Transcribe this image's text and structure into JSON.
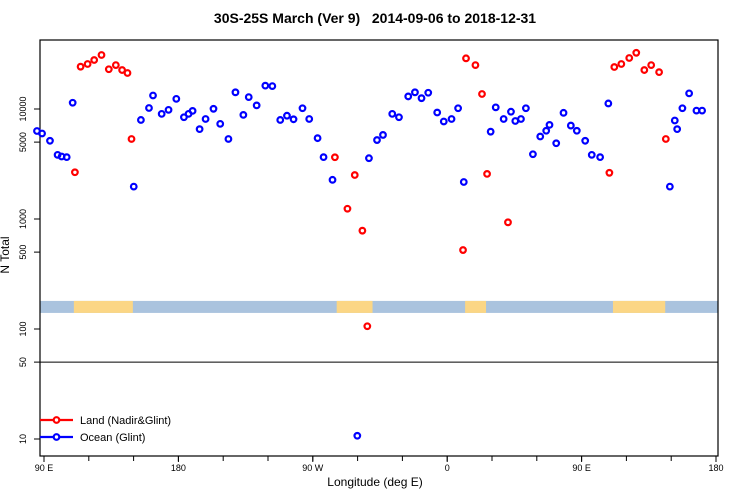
{
  "title": "30S-25S March (Ver 9)   2014-09-06 to 2018-12-31",
  "colors": {
    "land_series": "#ff0000",
    "ocean_series": "#0000ff",
    "strip_ocean": "#aac3de",
    "strip_land": "#fbd685",
    "axis": "#000000",
    "background": "#ffffff"
  },
  "chart_data": {
    "type": "scatter",
    "title": "30S-25S March (Ver 9)   2014-09-06 to 2018-12-31",
    "xlabel": "Longitude (deg E)",
    "ylabel": "N Total",
    "y_scale": "log10",
    "grid": false,
    "x_axis": {
      "ticks_major": [
        {
          "lon": 90,
          "label": "90 E"
        },
        {
          "lon": 180,
          "label": "180"
        },
        {
          "lon": 270,
          "label": "90 W"
        },
        {
          "lon": 360,
          "label": "0"
        },
        {
          "lon": 450,
          "label": "90 E"
        },
        {
          "lon": 540,
          "label": "180"
        }
      ],
      "minor_step_deg": 30,
      "range_deg": [
        90,
        540
      ]
    },
    "y_axis": {
      "ticks": [
        10,
        50,
        100,
        500,
        1000,
        5000,
        10000
      ],
      "labels": [
        "10",
        "50",
        "100",
        "500",
        "1000",
        "5000",
        "10000"
      ],
      "range": [
        8,
        45000
      ]
    },
    "reference_line_at_N": 50,
    "map_strip": {
      "description": "land/ocean strip along longitude",
      "N_range": [
        140,
        180
      ],
      "land_segments_deg": [
        [
          110,
          149.5
        ],
        [
          286,
          310
        ],
        [
          372,
          386
        ],
        [
          471,
          506
        ]
      ]
    },
    "legend": {
      "position": "bottom-left",
      "entries": [
        {
          "label": "Land (Nadir&Glint)",
          "color": "#ff0000"
        },
        {
          "label": "Ocean (Glint)",
          "color": "#0000ff"
        }
      ]
    },
    "series": [
      {
        "name": "Land (Nadir&Glint)",
        "color": "#ff0000",
        "points": [
          [
            114.5,
            24250
          ],
          [
            119.2,
            25650
          ],
          [
            123.6,
            27870
          ],
          [
            128.5,
            30970
          ],
          [
            133.4,
            22980
          ],
          [
            138.1,
            25070
          ],
          [
            142.3,
            22600
          ],
          [
            145.9,
            21250
          ],
          [
            148.6,
            5340
          ],
          [
            110.7,
            2660
          ],
          [
            284.8,
            3640
          ],
          [
            298.1,
            2510
          ],
          [
            293.2,
            1240
          ],
          [
            303.2,
            783
          ],
          [
            306.5,
            106
          ],
          [
            372.6,
            28880
          ],
          [
            378.9,
            25070
          ],
          [
            383.3,
            13690
          ],
          [
            386.7,
            2570
          ],
          [
            370.6,
            522
          ],
          [
            400.7,
            933
          ],
          [
            468.6,
            2630
          ],
          [
            471.9,
            24080
          ],
          [
            476.6,
            25650
          ],
          [
            481.9,
            29080
          ],
          [
            486.6,
            32420
          ],
          [
            492.0,
            22600
          ],
          [
            496.6,
            25070
          ],
          [
            501.9,
            21630
          ],
          [
            506.4,
            5340
          ]
        ]
      },
      {
        "name": "Ocean (Glint)",
        "color": "#0000ff",
        "points": [
          [
            85.3,
            6310
          ],
          [
            88.7,
            5990
          ],
          [
            94.0,
            5140
          ],
          [
            99.1,
            3830
          ],
          [
            101.8,
            3700
          ],
          [
            105.2,
            3650
          ],
          [
            109.2,
            11400
          ],
          [
            150.1,
            1970
          ],
          [
            154.9,
            7950
          ],
          [
            160.3,
            10210
          ],
          [
            163.0,
            13270
          ],
          [
            168.8,
            9030
          ],
          [
            173.4,
            9820
          ],
          [
            178.6,
            12360
          ],
          [
            183.7,
            8420
          ],
          [
            186.8,
            9030
          ],
          [
            189.5,
            9610
          ],
          [
            194.2,
            6560
          ],
          [
            198.2,
            8110
          ],
          [
            203.5,
            10040
          ],
          [
            208.0,
            7330
          ],
          [
            213.5,
            5340
          ],
          [
            218.2,
            14180
          ],
          [
            223.5,
            8840
          ],
          [
            227.1,
            12830
          ],
          [
            232.4,
            10780
          ],
          [
            238.2,
            16300
          ],
          [
            242.9,
            16150
          ],
          [
            248.2,
            7950
          ],
          [
            252.7,
            8690
          ],
          [
            257.1,
            8060
          ],
          [
            263.1,
            10160
          ],
          [
            267.6,
            8110
          ],
          [
            273.2,
            5430
          ],
          [
            277.2,
            3650
          ],
          [
            283.2,
            2270
          ],
          [
            307.6,
            3570
          ],
          [
            313.0,
            5220
          ],
          [
            317.0,
            5810
          ],
          [
            323.2,
            9030
          ],
          [
            327.7,
            8420
          ],
          [
            333.9,
            13010
          ],
          [
            338.4,
            14180
          ],
          [
            342.8,
            12540
          ],
          [
            347.3,
            14050
          ],
          [
            353.3,
            9290
          ],
          [
            357.7,
            7700
          ],
          [
            362.9,
            8110
          ],
          [
            367.3,
            10160
          ],
          [
            371.1,
            2170
          ],
          [
            389.1,
            6220
          ],
          [
            392.5,
            10350
          ],
          [
            397.8,
            8110
          ],
          [
            402.7,
            9450
          ],
          [
            405.6,
            7780
          ],
          [
            409.4,
            8110
          ],
          [
            412.7,
            10160
          ],
          [
            417.4,
            3880
          ],
          [
            422.3,
            5620
          ],
          [
            426.3,
            6340
          ],
          [
            428.5,
            7170
          ],
          [
            433.0,
            4880
          ],
          [
            437.9,
            9230
          ],
          [
            442.8,
            7070
          ],
          [
            446.8,
            6340
          ],
          [
            452.4,
            5140
          ],
          [
            456.8,
            3830
          ],
          [
            462.4,
            3650
          ],
          [
            467.9,
            11230
          ],
          [
            509.1,
            1970
          ],
          [
            512.4,
            7860
          ],
          [
            514.0,
            6560
          ],
          [
            517.5,
            10160
          ],
          [
            522.0,
            13870
          ],
          [
            526.9,
            9670
          ],
          [
            530.7,
            9670
          ],
          [
            299.8,
            10.7
          ]
        ]
      }
    ]
  }
}
